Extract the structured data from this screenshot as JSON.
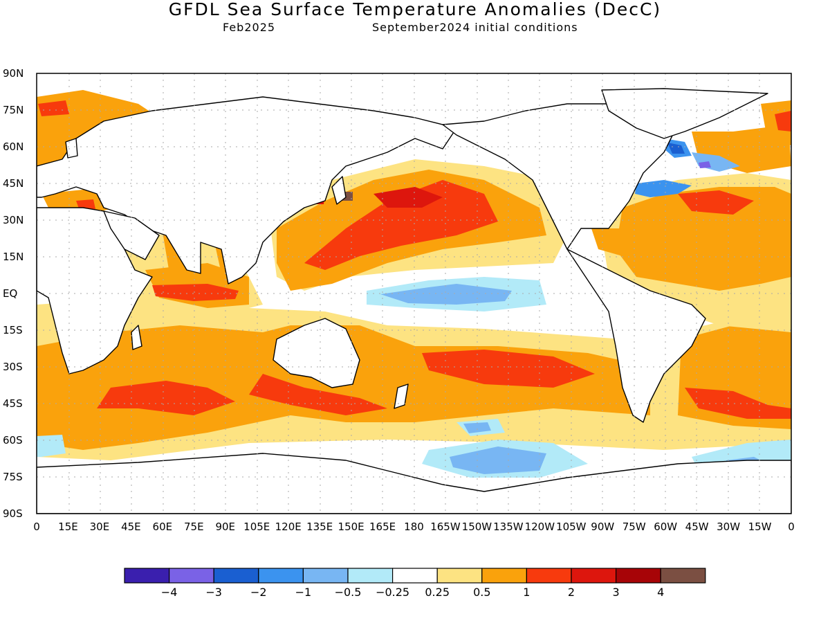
{
  "title": "GFDL Sea Surface Temperature Anomalies (DecC)",
  "subtitle_left": "Feb2025",
  "subtitle_right": "September2024 initial conditions",
  "lat_labels": [
    "90N",
    "75N",
    "60N",
    "45N",
    "30N",
    "15N",
    "EQ",
    "15S",
    "30S",
    "45S",
    "60S",
    "75S",
    "90S"
  ],
  "lon_labels": [
    "0",
    "15E",
    "30E",
    "45E",
    "60E",
    "75E",
    "90E",
    "105E",
    "120E",
    "135E",
    "150E",
    "165E",
    "180",
    "165W",
    "150W",
    "135W",
    "120W",
    "105W",
    "90W",
    "75W",
    "60W",
    "45W",
    "30W",
    "15W",
    "0"
  ],
  "colorbar": {
    "colors": [
      "#3a1fae",
      "#7a62e6",
      "#1a5fd1",
      "#3b93ef",
      "#78b6f3",
      "#b2eaf8",
      "#ffffff",
      "#fde382",
      "#faa20c",
      "#f73a0d",
      "#dd160d",
      "#a70407",
      "#7b4f42"
    ],
    "labels": [
      "-4",
      "-3",
      "-2",
      "-1",
      "-0.5",
      "-0.25",
      "0.25",
      "0.5",
      "1",
      "2",
      "3",
      "4"
    ]
  },
  "colors": {
    "land": "#ffffff",
    "coastline": "#000000",
    "grid": "#aaaaaa"
  }
}
